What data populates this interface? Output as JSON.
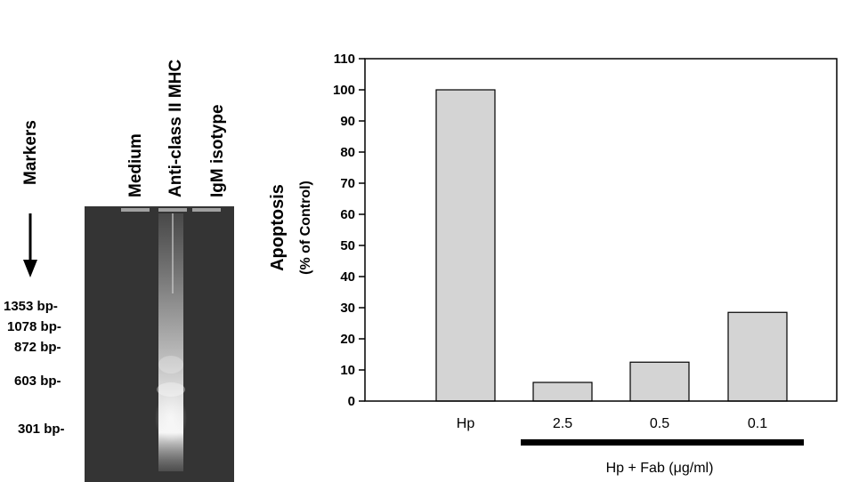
{
  "gel": {
    "lanes": [
      "Markers",
      "Medium",
      "Anti-class II MHC",
      "IgM isotype"
    ],
    "markers": [
      "1353 bp-",
      "1078 bp-",
      "872 bp-",
      "603 bp-",
      "301 bp-"
    ]
  },
  "chart_data": {
    "type": "bar",
    "categories": [
      "Hp",
      "2.5",
      "0.5",
      "0.1"
    ],
    "values": [
      100,
      6,
      12.5,
      28.5
    ],
    "ylabel": "Apoptosis",
    "ylabel_sub": "(% of Control)",
    "ylim": [
      0,
      110
    ],
    "yticks": [
      0,
      10,
      20,
      30,
      40,
      50,
      60,
      70,
      80,
      90,
      100,
      110
    ],
    "grid": false,
    "bar_color": "#d4d4d4",
    "group_bracket": {
      "label": "Hp + Fab (μg/ml)",
      "categories": [
        "2.5",
        "0.5",
        "0.1"
      ]
    }
  }
}
